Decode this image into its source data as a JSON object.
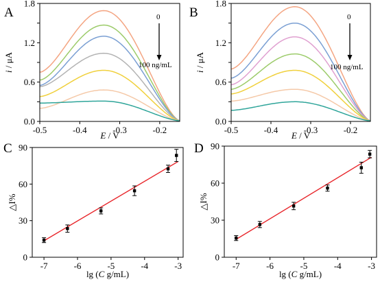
{
  "chart_data": [
    {
      "panel": "A",
      "type": "line",
      "xlabel_var": "E",
      "xlabel_unit": " / V",
      "ylabel_var": "i",
      "ylabel_unit": " / μA",
      "xlim": [
        -0.5,
        -0.15
      ],
      "ylim": [
        0,
        1.8
      ],
      "xticks": [
        -0.5,
        -0.4,
        -0.3,
        -0.2
      ],
      "xtick_labels": [
        "-0.5",
        "-0.4",
        "-0.3",
        "-0.2"
      ],
      "yticks": [
        0.0,
        0.3,
        0.6,
        0.9,
        1.2,
        1.5,
        1.8
      ],
      "ytick_labels": [
        "0.0",
        "",
        "0.6",
        "",
        "1.2",
        "",
        "1.8"
      ],
      "annotation_top": "0",
      "annotation_bottom": "100 ng/mL",
      "peak_x": -0.34,
      "series": [
        {
          "color": "#f4a582",
          "base": 0.75,
          "peak": 1.69,
          "end": 0.01
        },
        {
          "color": "#9ccb6a",
          "base": 0.63,
          "peak": 1.47,
          "end": 0.01
        },
        {
          "color": "#7a9fd3",
          "base": 0.55,
          "peak": 1.3,
          "end": 0.01
        },
        {
          "color": "#b3b3b3",
          "base": 0.53,
          "peak": 1.04,
          "end": 0.01
        },
        {
          "color": "#f0d03c",
          "base": 0.38,
          "peak": 0.78,
          "end": 0.01
        },
        {
          "color": "#f5c9a8",
          "base": 0.2,
          "peak": 0.48,
          "end": 0.01
        },
        {
          "color": "#2fa59a",
          "base": 0.28,
          "peak": 0.31,
          "end": 0.01
        }
      ]
    },
    {
      "panel": "B",
      "type": "line",
      "xlabel_var": "E",
      "xlabel_unit": " / V",
      "ylabel_var": "i",
      "ylabel_unit": " / μA",
      "xlim": [
        -0.5,
        -0.15
      ],
      "ylim": [
        0,
        1.8
      ],
      "xticks": [
        -0.5,
        -0.4,
        -0.3,
        -0.2
      ],
      "xtick_labels": [
        "-0.5",
        "-0.4",
        "-0.3",
        "-0.2"
      ],
      "yticks": [
        0.0,
        0.3,
        0.6,
        0.9,
        1.2,
        1.5,
        1.8
      ],
      "ytick_labels": [
        "0.0",
        "",
        "0.6",
        "",
        "1.2",
        "",
        "1.8"
      ],
      "annotation_top": "0",
      "annotation_bottom": "100 ng/mL",
      "peak_x": -0.34,
      "series": [
        {
          "color": "#f4a582",
          "base": 0.8,
          "peak": 1.75,
          "end": 0.01
        },
        {
          "color": "#7a9fd3",
          "base": 0.66,
          "peak": 1.5,
          "end": 0.01
        },
        {
          "color": "#e0a0d0",
          "base": 0.56,
          "peak": 1.29,
          "end": 0.01
        },
        {
          "color": "#9ccb6a",
          "base": 0.49,
          "peak": 1.03,
          "end": 0.01
        },
        {
          "color": "#f0d03c",
          "base": 0.42,
          "peak": 0.78,
          "end": 0.01
        },
        {
          "color": "#f5c9a8",
          "base": 0.31,
          "peak": 0.49,
          "end": 0.01
        },
        {
          "color": "#2fa59a",
          "base": 0.17,
          "peak": 0.3,
          "end": 0.01
        }
      ]
    },
    {
      "panel": "C",
      "type": "scatter",
      "xlabel_pre": "lg (",
      "xlabel_var": "C",
      "xlabel_post": " g/mL)",
      "ylabel": "△I%",
      "xlim": [
        -7.35,
        -2.85
      ],
      "ylim": [
        0,
        90
      ],
      "xticks": [
        -7,
        -6,
        -5,
        -4,
        -3
      ],
      "xtick_labels": [
        "-7",
        "-6",
        "-5",
        "-4",
        "-3"
      ],
      "yticks": [
        0,
        30,
        60,
        90
      ],
      "ytick_labels": [
        "0",
        "30",
        "60",
        "90"
      ],
      "line_color": "#e8262b",
      "fit": {
        "x": [
          -7,
          -3
        ],
        "y": [
          13.5,
          78.5
        ]
      },
      "points": [
        {
          "x": -7.0,
          "y": 14.0,
          "err": 2.0
        },
        {
          "x": -6.3,
          "y": 23.5,
          "err": 3.0
        },
        {
          "x": -5.3,
          "y": 38.0,
          "err": 2.5
        },
        {
          "x": -4.3,
          "y": 54.5,
          "err": 4.0
        },
        {
          "x": -3.3,
          "y": 72.5,
          "err": 3.0
        },
        {
          "x": -3.05,
          "y": 83.5,
          "err": 5.0
        }
      ]
    },
    {
      "panel": "D",
      "type": "scatter",
      "xlabel_pre": "lg (",
      "xlabel_var": "C",
      "xlabel_post": " g/mL)",
      "ylabel": "△I%",
      "xlim": [
        -7.35,
        -2.85
      ],
      "ylim": [
        0,
        90
      ],
      "xticks": [
        -7,
        -6,
        -5,
        -4,
        -3
      ],
      "xtick_labels": [
        "-7",
        "-6",
        "-5",
        "-4",
        "-3"
      ],
      "yticks": [
        0,
        30,
        60,
        90
      ],
      "ytick_labels": [
        "0",
        "30",
        "60",
        "90"
      ],
      "line_color": "#e8262b",
      "fit": {
        "x": [
          -7,
          -3
        ],
        "y": [
          14.5,
          81.0
        ]
      },
      "points": [
        {
          "x": -7.0,
          "y": 15.5,
          "err": 2.0
        },
        {
          "x": -6.3,
          "y": 26.5,
          "err": 2.5
        },
        {
          "x": -5.3,
          "y": 41.5,
          "err": 3.0
        },
        {
          "x": -4.3,
          "y": 56.0,
          "err": 2.5
        },
        {
          "x": -3.3,
          "y": 72.5,
          "err": 4.5
        },
        {
          "x": -3.05,
          "y": 83.5,
          "err": 3.0
        }
      ]
    }
  ]
}
